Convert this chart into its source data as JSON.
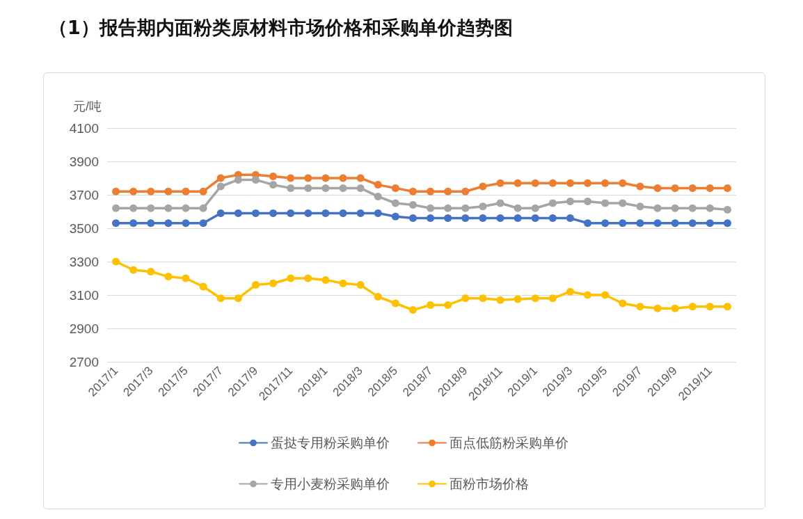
{
  "chart_data": {
    "type": "line",
    "title": "（1）报告期内面粉类原材料市场价格和采购单价趋势图",
    "ylabel": "元/吨",
    "categories": [
      "2017/1",
      null,
      "2017/3",
      null,
      "2017/5",
      null,
      "2017/7",
      null,
      "2017/9",
      null,
      "2017/11",
      null,
      "2018/1",
      null,
      "2018/3",
      null,
      "2018/5",
      null,
      "2018/7",
      null,
      "2018/9",
      null,
      "2018/11",
      null,
      "2019/1",
      null,
      "2019/3",
      null,
      "2019/5",
      null,
      "2019/7",
      null,
      "2019/9",
      null,
      "2019/11",
      null
    ],
    "series": [
      {
        "name": "蛋挞专用粉采购单价",
        "color": "#4472c4",
        "values": [
          3530,
          3530,
          3530,
          3530,
          3530,
          3530,
          3590,
          3590,
          3590,
          3590,
          3590,
          3590,
          3590,
          3590,
          3590,
          3590,
          3570,
          3560,
          3560,
          3560,
          3560,
          3560,
          3560,
          3560,
          3560,
          3560,
          3560,
          3530,
          3530,
          3530,
          3530,
          3530,
          3530,
          3530,
          3530,
          3530
        ]
      },
      {
        "name": "面点低筋粉采购单价",
        "color": "#ed7d31",
        "values": [
          3720,
          3720,
          3720,
          3720,
          3720,
          3720,
          3800,
          3820,
          3820,
          3810,
          3800,
          3800,
          3800,
          3800,
          3800,
          3760,
          3740,
          3720,
          3720,
          3720,
          3720,
          3750,
          3770,
          3770,
          3770,
          3770,
          3770,
          3770,
          3770,
          3770,
          3750,
          3740,
          3740,
          3740,
          3740,
          3740
        ]
      },
      {
        "name": "专用小麦粉采购单价",
        "color": "#a5a5a5",
        "values": [
          3620,
          3620,
          3620,
          3620,
          3620,
          3620,
          3750,
          3790,
          3790,
          3760,
          3740,
          3740,
          3740,
          3740,
          3740,
          3690,
          3650,
          3640,
          3620,
          3620,
          3620,
          3630,
          3650,
          3620,
          3620,
          3650,
          3660,
          3660,
          3650,
          3650,
          3630,
          3620,
          3620,
          3620,
          3620,
          3610
        ]
      },
      {
        "name": "面粉市场价格",
        "color": "#ffc000",
        "values": [
          3300,
          3250,
          3240,
          3210,
          3200,
          3150,
          3080,
          3080,
          3160,
          3170,
          3200,
          3200,
          3190,
          3170,
          3160,
          3090,
          3050,
          3010,
          3040,
          3040,
          3080,
          3080,
          3070,
          3075,
          3080,
          3080,
          3120,
          3100,
          3100,
          3050,
          3030,
          3020,
          3020,
          3030,
          3030,
          3030
        ]
      }
    ],
    "ylim": [
      2700,
      4100
    ],
    "yticks": [
      2700,
      2900,
      3100,
      3300,
      3500,
      3700,
      3900,
      4100
    ],
    "grid": "y",
    "legend": "bottom",
    "marker": "circle",
    "line_style": "solid"
  }
}
